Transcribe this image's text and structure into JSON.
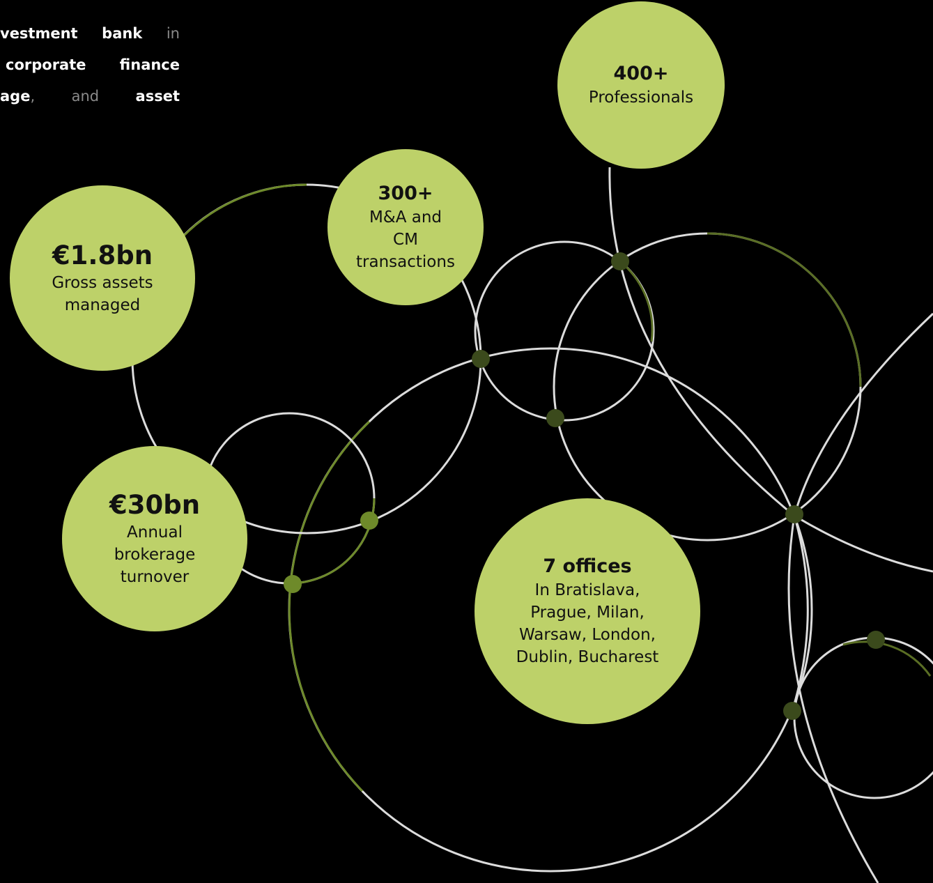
{
  "intro": {
    "lines": [
      [
        [
          {
            "text": "vestment",
            "bold": true
          }
        ],
        [
          {
            "text": "bank",
            "bold": true
          }
        ],
        [
          {
            "text": "in",
            "bold": false
          }
        ]
      ],
      [
        [
          {
            "text": "corporate",
            "bold": true
          }
        ],
        [
          {
            "text": "finance",
            "bold": true
          }
        ]
      ],
      [
        [
          {
            "text": "age",
            "bold": true
          },
          {
            "text": ",",
            "bold": false
          }
        ],
        [
          {
            "text": "and",
            "bold": false
          }
        ],
        [
          {
            "text": "asset",
            "bold": true
          }
        ]
      ]
    ]
  },
  "stats": [
    {
      "value": "400+",
      "label": [
        "Professionals"
      ]
    },
    {
      "value": "300+",
      "label": [
        "M&A and",
        "CM",
        "transactions"
      ]
    },
    {
      "value": "€1.8bn",
      "label": [
        "Gross assets",
        "managed"
      ]
    },
    {
      "value": "€30bn",
      "label": [
        "Annual",
        "brokerage",
        "turnover"
      ]
    },
    {
      "value": "7 offices",
      "label": [
        "In Bratislava,",
        "Prague, Milan,",
        "Warsaw, London,",
        "Dublin, Bucharest"
      ]
    }
  ]
}
